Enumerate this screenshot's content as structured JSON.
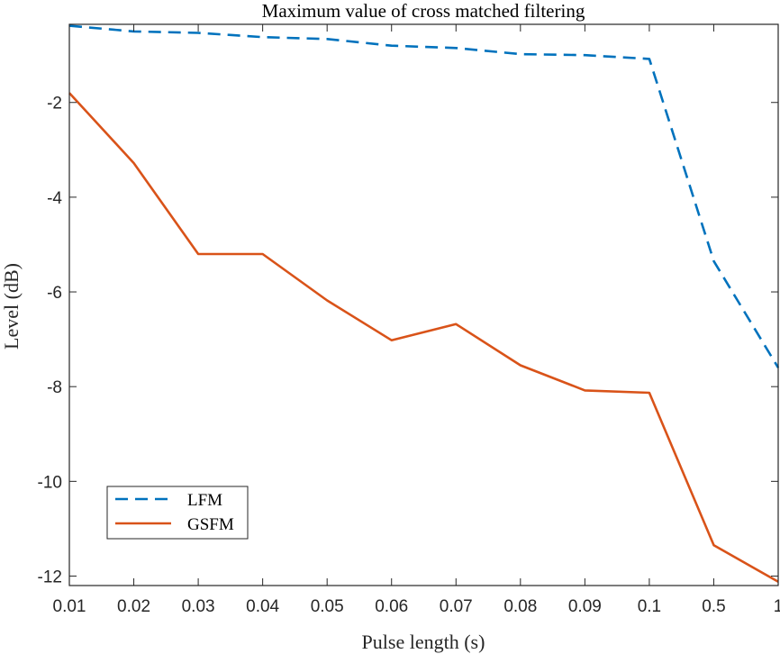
{
  "chart_data": {
    "type": "line",
    "title": "Maximum value of cross matched filtering",
    "xlabel": "Pulse length (s)",
    "ylabel": "Level (dB)",
    "categories": [
      "0.01",
      "0.02",
      "0.03",
      "0.04",
      "0.05",
      "0.06",
      "0.07",
      "0.08",
      "0.09",
      "0.1",
      "0.5",
      "1"
    ],
    "ylim": [
      -12.2,
      -0.35
    ],
    "yticks": [
      -2,
      -4,
      -6,
      -8,
      -10,
      -12
    ],
    "ytick_labels": [
      "-2",
      "-4",
      "-6",
      "-8",
      "-10",
      "-12"
    ],
    "grid": false,
    "legend_position": "bottom-left",
    "series": [
      {
        "name": "LFM",
        "color": "#0072BD",
        "style": "dashed",
        "values": [
          -0.38,
          -0.5,
          -0.53,
          -0.62,
          -0.66,
          -0.8,
          -0.85,
          -0.98,
          -1.0,
          -1.08,
          -5.35,
          -7.6
        ]
      },
      {
        "name": "GSFM",
        "color": "#D95319",
        "style": "solid",
        "values": [
          -1.8,
          -3.28,
          -5.2,
          -5.2,
          -6.18,
          -7.02,
          -6.68,
          -7.55,
          -8.08,
          -8.13,
          -11.35,
          -12.12
        ]
      }
    ]
  }
}
